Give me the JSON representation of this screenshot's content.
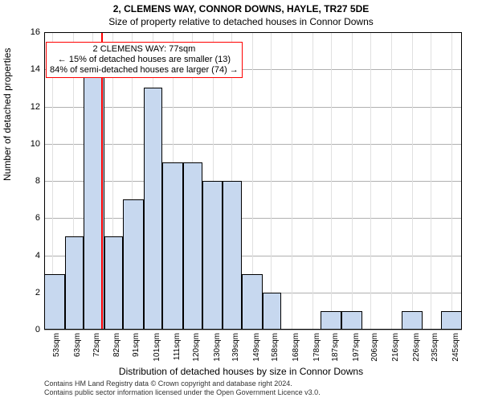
{
  "title": "2, CLEMENS WAY, CONNOR DOWNS, HAYLE, TR27 5DE",
  "subtitle": "Size of property relative to detached houses in Connor Downs",
  "yaxis_label": "Number of detached properties",
  "xaxis_label": "Distribution of detached houses by size in Connor Downs",
  "attribution_line1": "Contains HM Land Registry data © Crown copyright and database right 2024.",
  "attribution_line2": "Contains public sector information licensed under the Open Government Licence v3.0.",
  "chart": {
    "type": "histogram",
    "plot_bg": "#ffffff",
    "grid_color_major": "#b0b0b0",
    "grid_color_minor": "#e0e0e0",
    "bar_fill": "#c7d8ef",
    "bar_stroke": "#000000",
    "marker_color": "#ff0000",
    "ann_border": "#ff0000",
    "ylim": [
      0,
      16
    ],
    "yticks": [
      0,
      2,
      4,
      6,
      8,
      10,
      12,
      14,
      16
    ],
    "xlim": [
      49,
      250
    ],
    "x_major_ticks": [
      53,
      63,
      72,
      82,
      91,
      101,
      111,
      120,
      130,
      139,
      149,
      158,
      168,
      178,
      187,
      197,
      206,
      216,
      226,
      235,
      245
    ],
    "x_tick_unit": "sqm",
    "bars": [
      {
        "x0": 49,
        "x1": 59,
        "y": 3
      },
      {
        "x0": 59,
        "x1": 68,
        "y": 5
      },
      {
        "x0": 68,
        "x1": 78,
        "y": 14
      },
      {
        "x0": 78,
        "x1": 87,
        "y": 5
      },
      {
        "x0": 87,
        "x1": 97,
        "y": 7
      },
      {
        "x0": 97,
        "x1": 106,
        "y": 13
      },
      {
        "x0": 106,
        "x1": 116,
        "y": 9
      },
      {
        "x0": 116,
        "x1": 125,
        "y": 9
      },
      {
        "x0": 125,
        "x1": 135,
        "y": 8
      },
      {
        "x0": 135,
        "x1": 144,
        "y": 8
      },
      {
        "x0": 144,
        "x1": 154,
        "y": 3
      },
      {
        "x0": 154,
        "x1": 163,
        "y": 2
      },
      {
        "x0": 163,
        "x1": 173,
        "y": 0
      },
      {
        "x0": 173,
        "x1": 182,
        "y": 0
      },
      {
        "x0": 182,
        "x1": 192,
        "y": 1
      },
      {
        "x0": 192,
        "x1": 202,
        "y": 1
      },
      {
        "x0": 202,
        "x1": 211,
        "y": 0
      },
      {
        "x0": 211,
        "x1": 221,
        "y": 0
      },
      {
        "x0": 221,
        "x1": 231,
        "y": 1
      },
      {
        "x0": 231,
        "x1": 240,
        "y": 0
      },
      {
        "x0": 240,
        "x1": 250,
        "y": 1
      }
    ],
    "marker_x": 77,
    "annotation": {
      "line1": "2 CLEMENS WAY: 77sqm",
      "line2": "← 15% of detached houses are smaller (13)",
      "line3": "84% of semi-detached houses are larger (74) →",
      "top_y_value": 15.5
    }
  }
}
